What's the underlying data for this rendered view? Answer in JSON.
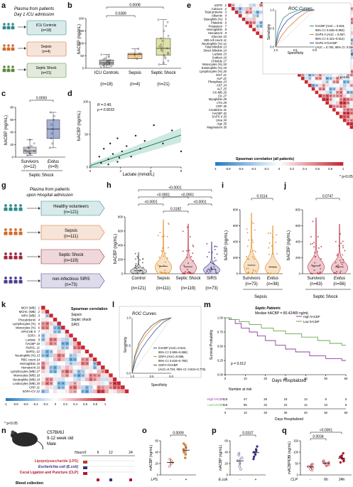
{
  "panels": {
    "a": {
      "letter": "a",
      "title_lines": [
        "Plasma from patients",
        "Day 1 ICU admission"
      ],
      "groups": [
        {
          "name": "ICU Controls",
          "n": "(n=18)",
          "color": "#2e8b8b"
        },
        {
          "name": "Sepsis",
          "n": "(n=4)",
          "color": "#d46a2a"
        },
        {
          "name": "Septic Shock",
          "n": "(n=21)",
          "color": "#5a8a3a"
        }
      ]
    },
    "b": {
      "letter": "b",
      "ylabel": "hACBP (ng/mL)",
      "yticks": [
        "0",
        "50",
        "100",
        "150",
        "200"
      ],
      "pvalues": [
        "0.0008",
        "0.0389"
      ],
      "categories": [
        {
          "label": "ICU Controls",
          "n": "(n=18)"
        },
        {
          "label": "Sepsis",
          "n": "(n=4)"
        },
        {
          "label": "Septic Shock",
          "n": "(n=21)"
        }
      ]
    },
    "c": {
      "letter": "c",
      "ylabel": "hACBP (ng/mL)",
      "yticks": [
        "0",
        "20",
        "40",
        "60",
        "80"
      ],
      "pvalue": "0.0093",
      "categories": [
        {
          "label": "Survivors",
          "n": "(n=12)"
        },
        {
          "label": "Exitus",
          "n": "(n=9)"
        }
      ],
      "xlabel": "Septic Shock"
    },
    "d": {
      "letter": "d",
      "ylabel": "hACBP (ng/mL)",
      "xlabel": "Lactate (mmol/L)",
      "stat1": "R = 0.49,",
      "stat2": "p = 0.0033",
      "yticks": [
        "0",
        "50",
        "100"
      ],
      "xticks": [
        "0",
        "3",
        "6",
        "9"
      ]
    },
    "e": {
      "letter": "e",
      "variables": [
        "eGFR",
        "Calcium",
        "Total proteins",
        "Albumin",
        "Basophils (%)",
        "Platelets",
        "Potassium",
        "Hemoglobin",
        "Hematocrit",
        "Glucose",
        "WB cell count",
        "Neutrophils (%)",
        "Total bilirubin",
        "Direct bilirubin",
        "Lactate",
        "Sodium",
        "Chloride",
        "Monocytes (%)",
        "Eosinophils (%)",
        "Lymphocytes (%)",
        "GGT",
        "ALP",
        "Phosphate",
        "AST",
        "ALT",
        "CK-MB",
        "CK",
        "Myoglobin",
        "cTnI",
        "CRP",
        "Creatinine",
        "hACBP",
        "SAPS II",
        "Urea",
        "Age",
        "Magnesium"
      ],
      "legend_title": "Spearman correlation (all patients)",
      "legend_ticks": [
        "-1",
        "-0.8",
        "-0.6",
        "-0.4",
        "-0.2",
        "0",
        "0.2",
        "0.4",
        "0.6",
        "0.8",
        "1"
      ],
      "footnote": "* p<0.05"
    },
    "f": {
      "letter": "f",
      "title": "ROC Curves",
      "ylabel": "Sensitivity",
      "xlabel": "Specificity",
      "legend": [
        "hACBP (AUC = 0.819,",
        "95% CI: 0.646~0.993)",
        "SAPS II (AUC = 0.667,",
        "95% CI: 0.421~0.912)",
        "SAPS II+hACBP",
        "(AUC = 0.793, 95% CI: 0.569~1)"
      ],
      "xticks": [
        "1.0",
        "0.5",
        "0.0"
      ],
      "yticks": [
        "0.0",
        "0.5",
        "1.0"
      ]
    },
    "g": {
      "letter": "g",
      "title_lines": [
        "Plasma from patients",
        "upon Hospital admission"
      ],
      "groups": [
        {
          "name": "Healthy volunteers",
          "n": "(n=121)",
          "color": "#2e8b8b"
        },
        {
          "name": "Sepsis",
          "n": "(n=111)",
          "color": "#d46a2a"
        },
        {
          "name": "Septic Shock",
          "n": "(n=119)",
          "color": "#a0263a"
        },
        {
          "name": "non-infectious SIRS",
          "n": "(n=73)",
          "color": "#4a3d8f"
        }
      ]
    },
    "h": {
      "letter": "h",
      "ylabel": "hACBP (ng/mL)",
      "yticks": [
        "0",
        "200",
        "400",
        "600",
        "800"
      ],
      "pvalues": [
        "<0.0001",
        "<0.0001",
        "<0.0001",
        "<0.0001",
        "0.3182",
        "<0.0001"
      ],
      "categories": [
        {
          "label": "Control",
          "n": "(n=121)"
        },
        {
          "label": "Sepsis",
          "n": "(n=111)"
        },
        {
          "label": "Septic Shock",
          "n": "(n=119)"
        },
        {
          "label": "SIRS",
          "n": "(n=73)"
        }
      ]
    },
    "i": {
      "letter": "i",
      "ylabel": "hACBP (ng/mL)",
      "yticks": [
        "0",
        "200",
        "400",
        "600",
        "800"
      ],
      "pvalue": "0.0114",
      "categories": [
        {
          "label": "Survivors",
          "n": "(n=73)"
        },
        {
          "label": "Exitus",
          "n": "(n=38)"
        }
      ],
      "xlabel": "Sepsis"
    },
    "j": {
      "letter": "j",
      "ylabel": "hACBP (ng/mL)",
      "yticks": [
        "0",
        "200",
        "400",
        "600",
        "800"
      ],
      "pvalue": "0.0747",
      "categories": [
        {
          "label": "Survivors",
          "n": "(n=63)"
        },
        {
          "label": "Exitus",
          "n": "(n=56)"
        }
      ],
      "xlabel": "Septic Shock"
    },
    "k": {
      "letter": "k",
      "variables": [
        "MCH (WB)",
        "MCHC (WB)",
        "MPV (WB)",
        "Procalcitonin",
        "Lymphocytes (%)",
        "Monocytes (%)",
        "APACHE II",
        "SOFA",
        "Lactate",
        "hACBP",
        "PaFiO₂",
        "SaFiO₂",
        "Neutrophils (%)",
        "RBC count",
        "Hemoglobin",
        "Hematocrit",
        "Lymphocytes (WB)",
        "Monocytes (WB)",
        "Neutrophils (WB)",
        "Leukocytes (WB)",
        "CRP",
        "SOFA-CV"
      ],
      "legend_title": "Spearman correlation",
      "legend_sub": [
        "Sepsis",
        "Septic shock",
        "SIRS"
      ],
      "legend_ticks": [
        "-1",
        "-0.8",
        "-0.6",
        "-0.4",
        "-0.2",
        "0",
        "0.2",
        "0.4",
        "0.6",
        "0.8",
        "1"
      ],
      "footnote": "* p<0.05"
    },
    "l": {
      "letter": "l",
      "title": "ROC Curves",
      "ylabel": "Sensitivity",
      "xlabel": "Specificity",
      "legend": [
        "hACBP (AUC=0.622,",
        "95% CI: 0.555~0.696)",
        "SOFA (AUC=0.686,",
        "95% CI: 0.616~0.759)",
        "SOFA+hACBP",
        "(AUC=0.704, 95% CI: 0.634~0.775)"
      ],
      "xticks": [
        "1.0",
        "0.5",
        "0.0"
      ],
      "yticks": [
        "0.0",
        "0.5",
        "1.0"
      ]
    },
    "m": {
      "letter": "m",
      "title": "Septic Patients",
      "subtitle": "Median hACBP = 80.42489 ng/mL",
      "ylabel": "Survival Probability",
      "xlabel": "Days Hospitalized",
      "legend": [
        "High hACBP",
        "Low hACBP"
      ],
      "pvalue": "p = 0.012",
      "yticks": [
        "0.00",
        "0.25",
        "0.50",
        "0.75",
        "1.00"
      ],
      "xticks": [
        "0",
        "10",
        "20",
        "30",
        "40",
        "50",
        "60"
      ],
      "risk_title": "Number at risk",
      "risk_high": [
        "115",
        "47",
        "26",
        "19",
        "13",
        "8",
        "5"
      ],
      "risk_low": [
        "115",
        "55",
        "32",
        "22",
        "14",
        "10",
        "8"
      ],
      "risk_xlabel": "Days Hospitalized"
    },
    "n": {
      "letter": "n",
      "mouse_lines": [
        "C57Bl/6J",
        "9-12 week old",
        "Male"
      ],
      "hours_label": "Hours",
      "hours": [
        "0",
        "6",
        "12",
        "24"
      ],
      "treatments": [
        {
          "label": "Lipopolysaccharide (LPS)",
          "color": "#c0392b"
        },
        {
          "label": "Escherichia coli (E.coli)",
          "color": "#3a2f8a"
        },
        {
          "label": "Cecal Ligation and Puncture (CLP)",
          "color": "#b0182d"
        }
      ],
      "blood_label": "Blood collection"
    },
    "o": {
      "letter": "o",
      "ylabel": "mACBP (ng/mL)",
      "yticks": [
        "0",
        "20",
        "40",
        "60"
      ],
      "pvalue": "0.0009",
      "xname": "LPS",
      "xcats": [
        "-",
        "+"
      ]
    },
    "p": {
      "letter": "p",
      "ylabel": "mACBP (ng/mL)",
      "yticks": [
        "0",
        "20",
        "40",
        "60"
      ],
      "pvalue": "0.0337",
      "xname": "E.coli",
      "xcats": [
        "-",
        "+"
      ]
    },
    "q": {
      "letter": "q",
      "ylabel": "mACBP/DBI (ng/mL)",
      "yticks": [
        "0",
        "50",
        "100",
        "150"
      ],
      "pvalues": [
        "<0.0001",
        "0.0034"
      ],
      "xname": "CLP",
      "xcats": [
        "-",
        "6h",
        "24h"
      ]
    }
  }
}
